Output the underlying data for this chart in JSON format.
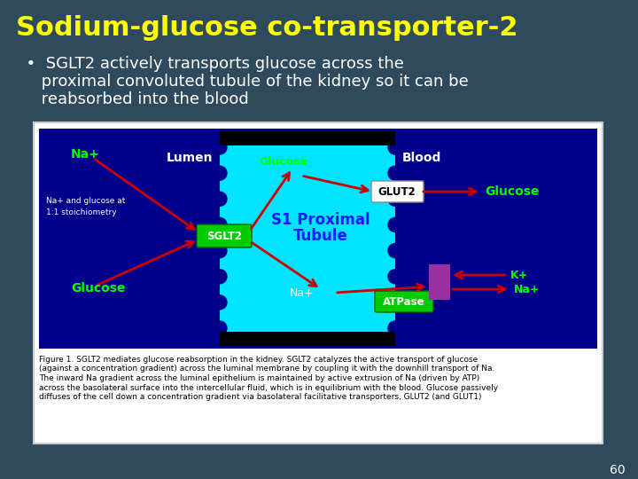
{
  "bg_color": "#2e4a5c",
  "title": "Sodium-glucose co-transporter-2",
  "title_color": "#ffff00",
  "title_fontsize": 22,
  "bullet_text_line1": "  •  SGLT2 actively transports glucose across the",
  "bullet_text_line2": "     proximal convoluted tubule of the kidney so it can be",
  "bullet_text_line3": "     reabsorbed into the blood",
  "bullet_color": "#ffffff",
  "bullet_fontsize": 13,
  "page_number": "60",
  "page_number_color": "#ffffff",
  "image_bg": "#00008b",
  "tubule_color": "#00e5ff",
  "lumen_label": "Lumen",
  "blood_label": "Blood",
  "label_color": "#ffffff",
  "sglt2_color": "#00cc00",
  "sglt2_text": "SGLT2",
  "glut2_text": "GLUT2",
  "atpase_text": "ATPase",
  "na_plus_left": "Na+",
  "glucose_left": "Glucose",
  "stoich_text": "Na+ and glucose at\n1:1 stoichiometry",
  "glucose_top": "Glucose",
  "glucose_right": "Glucose",
  "na_plus_bottom": "Na+",
  "k_plus": "K+",
  "na_plus_right": "Na+",
  "green_text_color": "#00ff00",
  "s1_proximal_line1": "S1 Proximal",
  "s1_proximal_line2": "Tubule",
  "s1_color": "#1a1aff",
  "figure_caption_line1": "Figure 1. SGLT2 mediates glucose reabsorption in the kidney. SGLT2 catalyzes the active transport of glucose",
  "figure_caption_line2": "(against a concentration gradient) across the luminal membrane by coupling it with the downhill transport of Na.",
  "figure_caption_line3": "The inward Na gradient across the luminal epithelium is maintained by active extrusion of Na (driven by ATP)",
  "figure_caption_line4": "across the basolateral surface into the intercellular fluid, which is in equilibrium with the blood. Glucose passively",
  "figure_caption_line5": "diffuses of the cell down a concentration gradient via basolateral facilitative transporters, GLUT2 (and GLUT1)",
  "caption_fontsize": 6.5,
  "arrow_color": "#cc0000",
  "purple_rect_color": "#9b30a0"
}
